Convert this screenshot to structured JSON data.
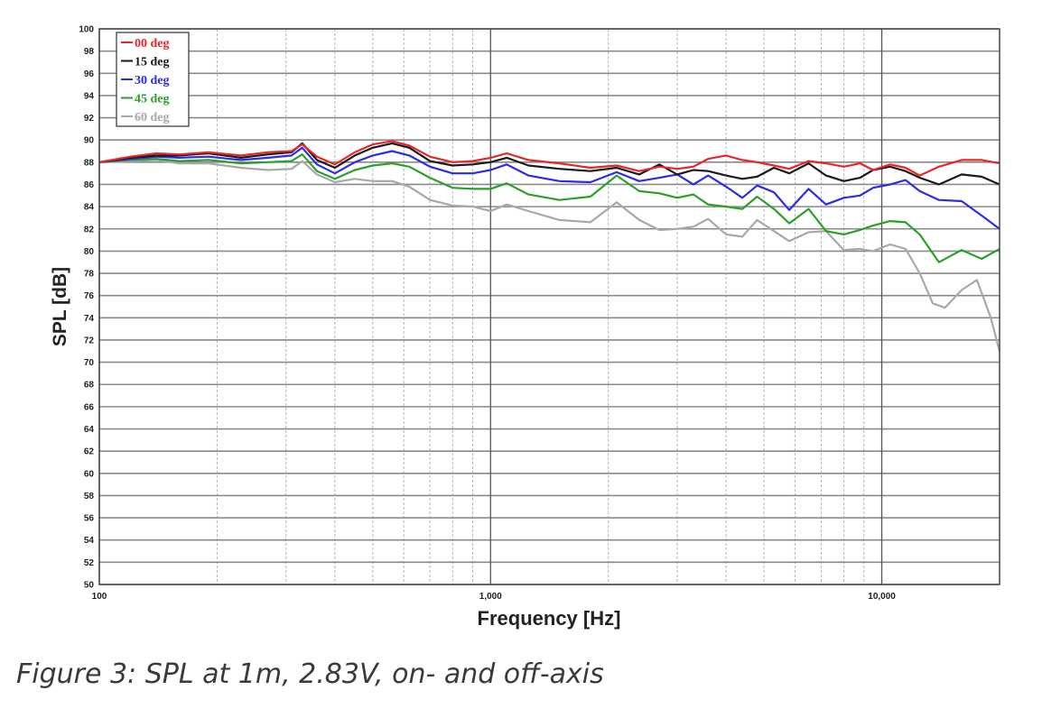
{
  "caption": "Figure 3: SPL at 1m, 2.83V, on- and off-axis",
  "chart_data": {
    "type": "line",
    "title": "",
    "xlabel": "Frequency [Hz]",
    "ylabel": "SPL [dB]",
    "xscale": "log",
    "xlim": [
      100,
      20000
    ],
    "ylim": [
      50,
      100
    ],
    "x_tick_labels": [
      {
        "value": 100,
        "label": "100"
      },
      {
        "value": 1000,
        "label": "1,000"
      },
      {
        "value": 10000,
        "label": "10,000"
      }
    ],
    "y_ticks": [
      50,
      52,
      54,
      56,
      58,
      60,
      62,
      64,
      66,
      68,
      70,
      72,
      74,
      76,
      78,
      80,
      82,
      84,
      86,
      88,
      90,
      92,
      94,
      96,
      98,
      100
    ],
    "grid": true,
    "legend_position": "top-left",
    "series": [
      {
        "name": "00 deg",
        "color": "#e8262a",
        "points": [
          [
            100,
            88.0
          ],
          [
            120,
            88.5
          ],
          [
            140,
            88.8
          ],
          [
            160,
            88.7
          ],
          [
            190,
            88.9
          ],
          [
            230,
            88.6
          ],
          [
            270,
            88.9
          ],
          [
            310,
            89.0
          ],
          [
            330,
            89.6
          ],
          [
            360,
            88.5
          ],
          [
            400,
            87.8
          ],
          [
            450,
            88.9
          ],
          [
            500,
            89.6
          ],
          [
            560,
            89.9
          ],
          [
            620,
            89.5
          ],
          [
            700,
            88.5
          ],
          [
            800,
            88.0
          ],
          [
            900,
            88.1
          ],
          [
            1000,
            88.4
          ],
          [
            1100,
            88.8
          ],
          [
            1250,
            88.2
          ],
          [
            1500,
            87.9
          ],
          [
            1800,
            87.5
          ],
          [
            2100,
            87.7
          ],
          [
            2400,
            87.2
          ],
          [
            2700,
            87.6
          ],
          [
            3000,
            87.4
          ],
          [
            3300,
            87.6
          ],
          [
            3600,
            88.3
          ],
          [
            4000,
            88.6
          ],
          [
            4400,
            88.2
          ],
          [
            4800,
            88.0
          ],
          [
            5300,
            87.7
          ],
          [
            5800,
            87.4
          ],
          [
            6500,
            88.1
          ],
          [
            7200,
            87.9
          ],
          [
            8000,
            87.6
          ],
          [
            8800,
            87.9
          ],
          [
            9500,
            87.3
          ],
          [
            10500,
            87.8
          ],
          [
            11500,
            87.5
          ],
          [
            12500,
            86.8
          ],
          [
            14000,
            87.6
          ],
          [
            16000,
            88.2
          ],
          [
            18000,
            88.2
          ],
          [
            20000,
            87.9
          ]
        ]
      },
      {
        "name": "15 deg",
        "color": "#1a1a1a",
        "points": [
          [
            100,
            88.0
          ],
          [
            120,
            88.4
          ],
          [
            140,
            88.6
          ],
          [
            160,
            88.6
          ],
          [
            190,
            88.8
          ],
          [
            230,
            88.4
          ],
          [
            270,
            88.7
          ],
          [
            310,
            88.9
          ],
          [
            330,
            89.7
          ],
          [
            360,
            88.2
          ],
          [
            400,
            87.5
          ],
          [
            450,
            88.6
          ],
          [
            500,
            89.3
          ],
          [
            560,
            89.7
          ],
          [
            620,
            89.3
          ],
          [
            700,
            88.1
          ],
          [
            800,
            87.7
          ],
          [
            900,
            87.8
          ],
          [
            1000,
            88.0
          ],
          [
            1100,
            88.4
          ],
          [
            1250,
            87.7
          ],
          [
            1500,
            87.4
          ],
          [
            1800,
            87.2
          ],
          [
            2100,
            87.5
          ],
          [
            2400,
            86.9
          ],
          [
            2700,
            87.8
          ],
          [
            3000,
            86.9
          ],
          [
            3300,
            87.3
          ],
          [
            3600,
            87.2
          ],
          [
            4000,
            86.8
          ],
          [
            4400,
            86.5
          ],
          [
            4800,
            86.7
          ],
          [
            5300,
            87.5
          ],
          [
            5800,
            87.0
          ],
          [
            6500,
            87.9
          ],
          [
            7200,
            86.8
          ],
          [
            8000,
            86.3
          ],
          [
            8800,
            86.6
          ],
          [
            9500,
            87.3
          ],
          [
            10500,
            87.6
          ],
          [
            11500,
            87.2
          ],
          [
            12500,
            86.6
          ],
          [
            14000,
            86.0
          ],
          [
            16000,
            86.9
          ],
          [
            18000,
            86.7
          ],
          [
            20000,
            86.0
          ]
        ]
      },
      {
        "name": "30 deg",
        "color": "#2b2be8",
        "points": [
          [
            100,
            88.0
          ],
          [
            120,
            88.3
          ],
          [
            140,
            88.5
          ],
          [
            160,
            88.4
          ],
          [
            190,
            88.5
          ],
          [
            230,
            88.2
          ],
          [
            270,
            88.4
          ],
          [
            310,
            88.6
          ],
          [
            330,
            89.3
          ],
          [
            360,
            87.8
          ],
          [
            400,
            87.0
          ],
          [
            450,
            88.0
          ],
          [
            500,
            88.6
          ],
          [
            560,
            89.0
          ],
          [
            620,
            88.6
          ],
          [
            700,
            87.6
          ],
          [
            800,
            87.0
          ],
          [
            900,
            87.0
          ],
          [
            1000,
            87.3
          ],
          [
            1100,
            87.8
          ],
          [
            1250,
            86.8
          ],
          [
            1500,
            86.3
          ],
          [
            1800,
            86.2
          ],
          [
            2100,
            87.1
          ],
          [
            2400,
            86.3
          ],
          [
            2700,
            86.6
          ],
          [
            3000,
            86.9
          ],
          [
            3300,
            86.0
          ],
          [
            3600,
            86.8
          ],
          [
            4000,
            85.8
          ],
          [
            4400,
            84.8
          ],
          [
            4800,
            85.9
          ],
          [
            5300,
            85.3
          ],
          [
            5800,
            83.7
          ],
          [
            6500,
            85.6
          ],
          [
            7200,
            84.2
          ],
          [
            8000,
            84.8
          ],
          [
            8800,
            85.0
          ],
          [
            9500,
            85.7
          ],
          [
            10500,
            86.0
          ],
          [
            11500,
            86.4
          ],
          [
            12500,
            85.4
          ],
          [
            14000,
            84.6
          ],
          [
            16000,
            84.5
          ],
          [
            18000,
            83.2
          ],
          [
            20000,
            82.0
          ]
        ]
      },
      {
        "name": "45 deg",
        "color": "#2aa02a",
        "points": [
          [
            100,
            88.0
          ],
          [
            120,
            88.2
          ],
          [
            140,
            88.3
          ],
          [
            160,
            88.1
          ],
          [
            190,
            88.2
          ],
          [
            230,
            87.9
          ],
          [
            270,
            88.0
          ],
          [
            310,
            88.1
          ],
          [
            330,
            88.7
          ],
          [
            360,
            87.2
          ],
          [
            400,
            86.5
          ],
          [
            450,
            87.3
          ],
          [
            500,
            87.7
          ],
          [
            560,
            87.9
          ],
          [
            620,
            87.6
          ],
          [
            700,
            86.6
          ],
          [
            800,
            85.7
          ],
          [
            900,
            85.6
          ],
          [
            1000,
            85.6
          ],
          [
            1100,
            86.1
          ],
          [
            1250,
            85.1
          ],
          [
            1500,
            84.6
          ],
          [
            1800,
            84.9
          ],
          [
            2100,
            86.8
          ],
          [
            2400,
            85.4
          ],
          [
            2700,
            85.2
          ],
          [
            3000,
            84.8
          ],
          [
            3300,
            85.1
          ],
          [
            3600,
            84.2
          ],
          [
            4000,
            84.0
          ],
          [
            4400,
            83.8
          ],
          [
            4800,
            84.9
          ],
          [
            5300,
            83.8
          ],
          [
            5800,
            82.5
          ],
          [
            6500,
            83.8
          ],
          [
            7200,
            81.8
          ],
          [
            8000,
            81.5
          ],
          [
            8800,
            81.9
          ],
          [
            9500,
            82.3
          ],
          [
            10500,
            82.7
          ],
          [
            11500,
            82.6
          ],
          [
            12500,
            81.5
          ],
          [
            14000,
            79.0
          ],
          [
            16000,
            80.1
          ],
          [
            18000,
            79.3
          ],
          [
            20000,
            80.2
          ]
        ]
      },
      {
        "name": "60 deg",
        "color": "#a8a8a8",
        "points": [
          [
            100,
            88.0
          ],
          [
            120,
            88.1
          ],
          [
            140,
            88.2
          ],
          [
            160,
            87.9
          ],
          [
            190,
            87.9
          ],
          [
            230,
            87.5
          ],
          [
            270,
            87.3
          ],
          [
            310,
            87.4
          ],
          [
            330,
            88.1
          ],
          [
            360,
            86.9
          ],
          [
            400,
            86.2
          ],
          [
            450,
            86.5
          ],
          [
            500,
            86.3
          ],
          [
            560,
            86.3
          ],
          [
            620,
            85.8
          ],
          [
            700,
            84.6
          ],
          [
            800,
            84.1
          ],
          [
            900,
            84.0
          ],
          [
            1000,
            83.6
          ],
          [
            1100,
            84.2
          ],
          [
            1250,
            83.6
          ],
          [
            1500,
            82.8
          ],
          [
            1800,
            82.6
          ],
          [
            2100,
            84.4
          ],
          [
            2400,
            82.8
          ],
          [
            2700,
            81.9
          ],
          [
            3000,
            82.0
          ],
          [
            3300,
            82.2
          ],
          [
            3600,
            82.9
          ],
          [
            4000,
            81.5
          ],
          [
            4400,
            81.3
          ],
          [
            4800,
            82.8
          ],
          [
            5300,
            81.8
          ],
          [
            5800,
            80.9
          ],
          [
            6500,
            81.7
          ],
          [
            7200,
            81.8
          ],
          [
            8000,
            80.1
          ],
          [
            8800,
            80.2
          ],
          [
            9500,
            80.0
          ],
          [
            10500,
            80.6
          ],
          [
            11500,
            80.2
          ],
          [
            12500,
            78.0
          ],
          [
            13500,
            75.3
          ],
          [
            14500,
            74.9
          ],
          [
            16000,
            76.5
          ],
          [
            17500,
            77.4
          ],
          [
            19000,
            74.0
          ],
          [
            20000,
            71.0
          ]
        ]
      }
    ]
  }
}
